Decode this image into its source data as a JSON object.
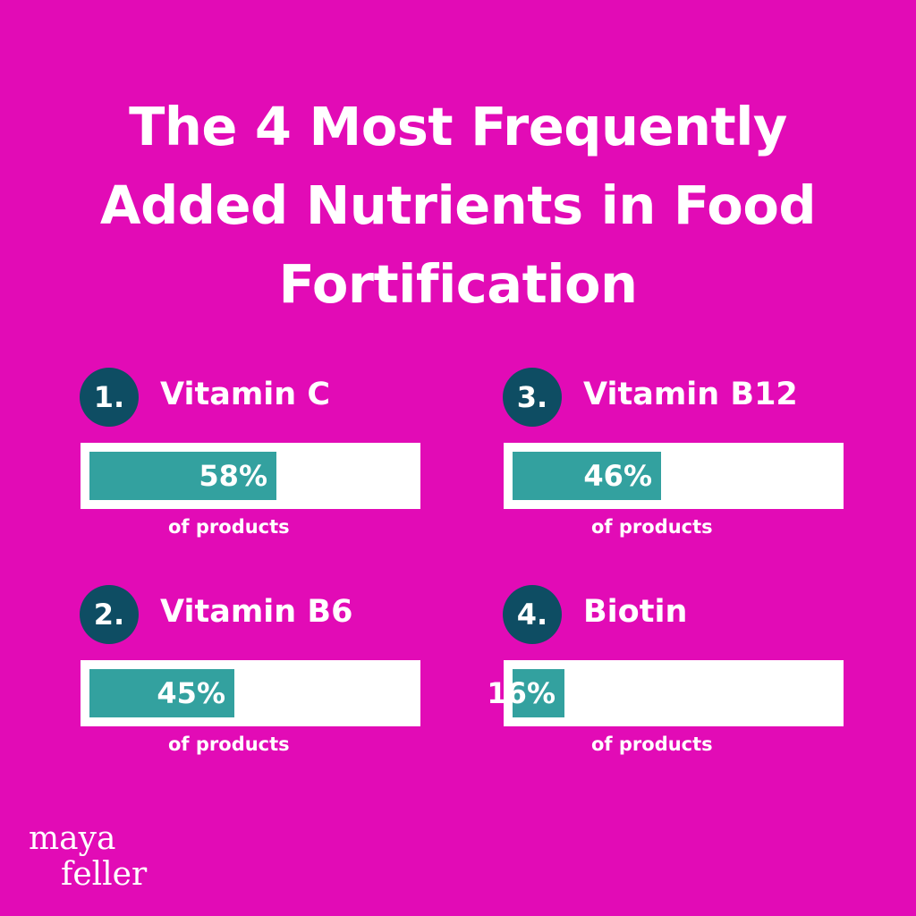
{
  "title": "The 4 Most Frequently Added Nutrients in Food Fortification",
  "colors": {
    "background": "#e20bb6",
    "badge": "#0e4d63",
    "bar_fill": "#33a19f",
    "bar_track": "#ffffff"
  },
  "chart_data": {
    "type": "bar",
    "title": "The 4 Most Frequently Added Nutrients in Food Fortification",
    "unit": "% of products",
    "ylim": [
      0,
      100
    ],
    "items": [
      {
        "rank": "1.",
        "name": "Vitamin C",
        "value": 58,
        "value_label": "58%",
        "caption": "of products"
      },
      {
        "rank": "2.",
        "name": "Vitamin B6",
        "value": 45,
        "value_label": "45%",
        "caption": "of products"
      },
      {
        "rank": "3.",
        "name": "Vitamin B12",
        "value": 46,
        "value_label": "46%",
        "caption": "of products"
      },
      {
        "rank": "4.",
        "name": "Biotin",
        "value": 16,
        "value_label": "16%",
        "caption": "of products"
      }
    ]
  },
  "logo": {
    "line1": "maya",
    "line2": "feller"
  }
}
